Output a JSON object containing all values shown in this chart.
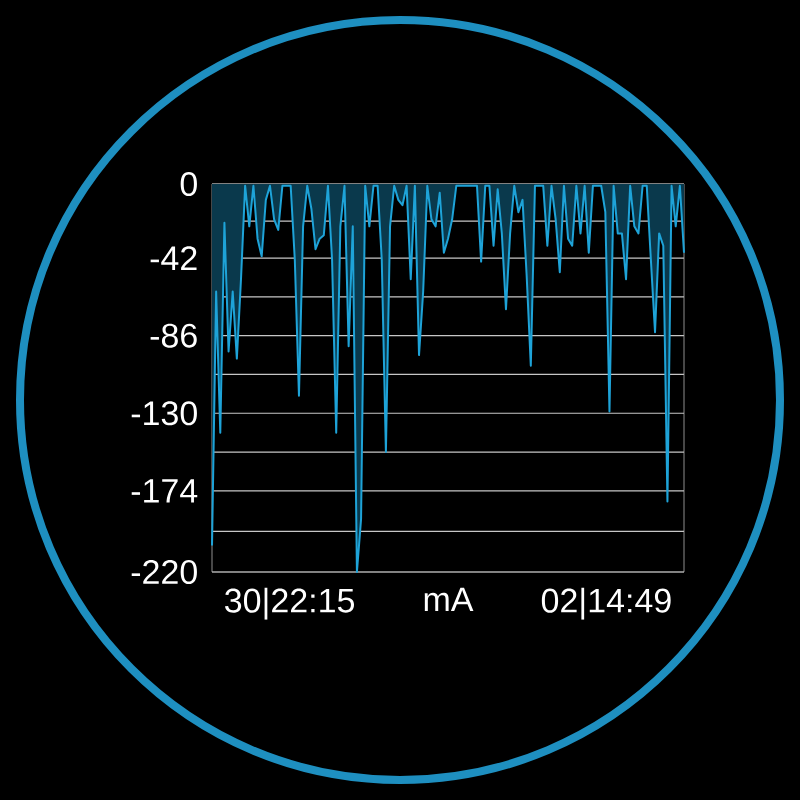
{
  "chart_data": {
    "type": "area",
    "xlabel": "mA",
    "annotations": [
      "30|22:15",
      "02|14:49"
    ],
    "categories": [
      null,
      null,
      null,
      null,
      null,
      null,
      null,
      null,
      null,
      null,
      null,
      null,
      null,
      null,
      null,
      null,
      null,
      null,
      null,
      null,
      null,
      null,
      null,
      null,
      null,
      null,
      null,
      null,
      null,
      null,
      null,
      null,
      null,
      null,
      null,
      null,
      null,
      null,
      null,
      null,
      null,
      null,
      null,
      null,
      null,
      null,
      null,
      null,
      null,
      null,
      null,
      null,
      null,
      null,
      null,
      null,
      null,
      null,
      null,
      null,
      null,
      null,
      null,
      null,
      null,
      null,
      null,
      null,
      null,
      null,
      null,
      null,
      null,
      null,
      null,
      null,
      null,
      null,
      null,
      null,
      null,
      null,
      null,
      null,
      null,
      null,
      null,
      null,
      null,
      null,
      null,
      null,
      null,
      null,
      null,
      null,
      null,
      null,
      null,
      null,
      null,
      null,
      null,
      null,
      null,
      null,
      null,
      null,
      null,
      null,
      null,
      null,
      null,
      null,
      null
    ],
    "values": [
      -205,
      -61,
      -141,
      -22,
      -95,
      -61,
      -99,
      -54,
      -1,
      -24,
      -1,
      -31,
      -41,
      -9,
      -1,
      -20,
      -26,
      -1,
      -1,
      -1,
      -43,
      -120,
      -24,
      -1,
      -14,
      -37,
      -31,
      -29,
      -1,
      -43,
      -141,
      -24,
      -1,
      -92,
      -24,
      -220,
      -190,
      -1,
      -24,
      -1,
      -1,
      -43,
      -152,
      -24,
      -1,
      -9,
      -12,
      -1,
      -54,
      -1,
      -97,
      -61,
      -1,
      -20,
      -24,
      -5,
      -39,
      -31,
      -20,
      -1,
      -1,
      -1,
      -1,
      -1,
      -1,
      -44,
      -1,
      -1,
      -35,
      -3,
      -28,
      -71,
      -28,
      -1,
      -16,
      -9,
      -52,
      -103,
      -1,
      -1,
      -1,
      -35,
      -1,
      -20,
      -50,
      -1,
      -31,
      -35,
      -1,
      -28,
      -1,
      -39,
      -1,
      -1,
      -1,
      -16,
      -129,
      -1,
      -28,
      -28,
      -54,
      -1,
      -24,
      -28,
      -1,
      -1,
      -43,
      -84,
      -28,
      -35,
      -180,
      -1,
      -24,
      -1,
      -39
    ],
    "color": "#1ea3d8",
    "ylim": [
      -220,
      0
    ],
    "yticks": [
      {
        "value": 0,
        "label": "0"
      },
      {
        "value": -21,
        "label": null
      },
      {
        "value": -42,
        "label": "-42"
      },
      {
        "value": -64,
        "label": null
      },
      {
        "value": -86,
        "label": "-86"
      },
      {
        "value": -108,
        "label": null
      },
      {
        "value": -130,
        "label": "-130"
      },
      {
        "value": -152,
        "label": null
      },
      {
        "value": -174,
        "label": "-174"
      },
      {
        "value": -197,
        "label": null
      },
      {
        "value": -220,
        "label": "-220"
      }
    ],
    "grid": "y",
    "marker": "none",
    "line_style": "solid"
  }
}
